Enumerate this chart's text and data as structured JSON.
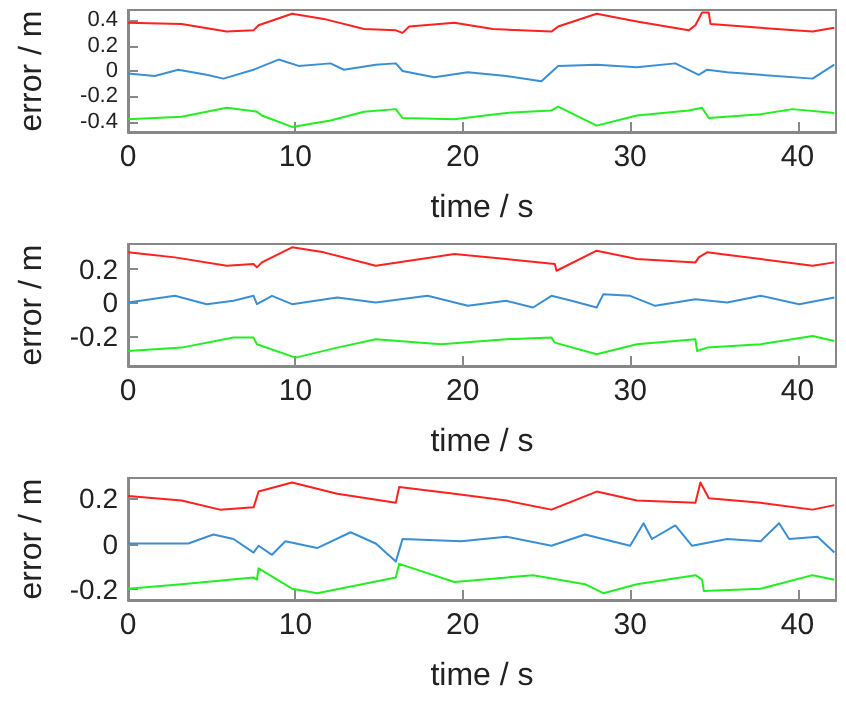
{
  "chart_data": [
    {
      "type": "line",
      "xlabel": "time / s",
      "ylabel": "error / m",
      "xlim": [
        0,
        42.3
      ],
      "xticks": [
        0,
        10,
        20,
        30,
        40
      ],
      "ylim": [
        -0.48,
        0.48
      ],
      "yticks": [
        -0.4,
        -0.2,
        0,
        0.2,
        0.4
      ],
      "grid": false,
      "marker": "none",
      "line_style": "solid",
      "series": [
        {
          "color": "#ff2020",
          "x": [
            0,
            3.2,
            5.9,
            7.5,
            7.8,
            9.8,
            11.7,
            14.1,
            16.0,
            16.4,
            16.8,
            19.5,
            21.8,
            25.3,
            25.7,
            28.0,
            30.4,
            33.5,
            33.9,
            34.3,
            34.7,
            34.8,
            37.8,
            40.9,
            42.2
          ],
          "values": [
            0.38,
            0.37,
            0.31,
            0.32,
            0.36,
            0.45,
            0.41,
            0.33,
            0.32,
            0.3,
            0.35,
            0.38,
            0.33,
            0.31,
            0.35,
            0.45,
            0.39,
            0.32,
            0.36,
            0.46,
            0.46,
            0.37,
            0.34,
            0.31,
            0.34
          ]
        },
        {
          "color": "#3a8fd4",
          "x": [
            0,
            1.6,
            3.0,
            4.7,
            5.7,
            7.5,
            9.0,
            10.2,
            12.1,
            12.9,
            14.8,
            16.0,
            16.4,
            18.3,
            20.3,
            22.6,
            24.7,
            25.7,
            28.0,
            30.4,
            32.7,
            34.1,
            34.6,
            35.8,
            37.8,
            40.9,
            42.2
          ],
          "values": [
            -0.02,
            -0.04,
            0.01,
            -0.03,
            -0.06,
            0.01,
            0.09,
            0.04,
            0.06,
            0.01,
            0.05,
            0.06,
            0,
            -0.05,
            -0.01,
            -0.04,
            -0.08,
            0.04,
            0.05,
            0.03,
            0.06,
            -0.03,
            0.01,
            -0.01,
            -0.03,
            -0.06,
            0.05
          ]
        },
        {
          "color": "#22ee22",
          "x": [
            0,
            3.2,
            5.9,
            7.7,
            8.0,
            9.8,
            12.1,
            14.1,
            16.0,
            16.4,
            19.5,
            22.6,
            25.3,
            25.7,
            28.0,
            30.4,
            33.5,
            34.3,
            34.7,
            37.8,
            39.7,
            42.2
          ],
          "values": [
            -0.38,
            -0.36,
            -0.29,
            -0.32,
            -0.35,
            -0.44,
            -0.39,
            -0.32,
            -0.3,
            -0.37,
            -0.38,
            -0.33,
            -0.31,
            -0.28,
            -0.43,
            -0.35,
            -0.31,
            -0.29,
            -0.37,
            -0.34,
            -0.3,
            -0.33
          ]
        }
      ]
    },
    {
      "type": "line",
      "xlabel": "time / s",
      "ylabel": "error / m",
      "xlim": [
        0,
        42.3
      ],
      "xticks": [
        0,
        10,
        20,
        30,
        40
      ],
      "ylim": [
        -0.38,
        0.35
      ],
      "yticks": [
        -0.2,
        0,
        0.2
      ],
      "grid": false,
      "marker": "none",
      "line_style": "solid",
      "series": [
        {
          "color": "#ff2020",
          "x": [
            0,
            2.8,
            5.9,
            7.5,
            7.7,
            8.0,
            9.8,
            11.7,
            14.8,
            19.5,
            22.6,
            25.5,
            25.6,
            28.0,
            30.4,
            33.9,
            34.1,
            34.6,
            37.8,
            40.9,
            42.2
          ],
          "values": [
            0.3,
            0.27,
            0.22,
            0.23,
            0.21,
            0.24,
            0.33,
            0.3,
            0.22,
            0.29,
            0.26,
            0.23,
            0.19,
            0.31,
            0.26,
            0.24,
            0.27,
            0.3,
            0.26,
            0.22,
            0.24
          ]
        },
        {
          "color": "#3a8fd4",
          "x": [
            0,
            2.8,
            4.7,
            6.3,
            7.5,
            7.7,
            8.6,
            9.8,
            12.5,
            14.8,
            17.9,
            20.3,
            22.6,
            24.2,
            25.3,
            26.5,
            28.0,
            28.4,
            30.0,
            31.5,
            33.9,
            35.8,
            37.8,
            40.1,
            42.2
          ],
          "values": [
            0,
            0.04,
            -0.01,
            0.01,
            0.04,
            -0.01,
            0.04,
            -0.01,
            0.03,
            0,
            0.04,
            -0.02,
            0.01,
            -0.03,
            0.04,
            0.01,
            -0.03,
            0.05,
            0.04,
            -0.02,
            0.02,
            0,
            0.04,
            -0.01,
            0.03
          ]
        },
        {
          "color": "#22ee22",
          "x": [
            0,
            3.2,
            6.3,
            7.5,
            7.7,
            10.0,
            12.5,
            14.8,
            18.7,
            22.6,
            25.3,
            25.5,
            28.0,
            30.4,
            33.9,
            34.0,
            34.6,
            37.8,
            40.9,
            42.2
          ],
          "values": [
            -0.29,
            -0.27,
            -0.21,
            -0.21,
            -0.25,
            -0.33,
            -0.27,
            -0.22,
            -0.25,
            -0.22,
            -0.21,
            -0.24,
            -0.31,
            -0.25,
            -0.22,
            -0.29,
            -0.27,
            -0.25,
            -0.2,
            -0.23
          ]
        }
      ]
    },
    {
      "type": "line",
      "xlabel": "time / s",
      "ylabel": "error / m",
      "xlim": [
        0,
        42.3
      ],
      "xticks": [
        0,
        10,
        20,
        30,
        40
      ],
      "ylim": [
        -0.25,
        0.29
      ],
      "yticks": [
        -0.2,
        0,
        0.2
      ],
      "grid": false,
      "marker": "none",
      "line_style": "solid",
      "series": [
        {
          "color": "#ff2020",
          "x": [
            0,
            3.2,
            5.5,
            7.5,
            7.8,
            9.8,
            12.5,
            16.0,
            16.2,
            19.5,
            22.6,
            25.3,
            28.0,
            30.4,
            33.9,
            34.2,
            34.7,
            37.8,
            40.9,
            42.2
          ],
          "values": [
            0.21,
            0.19,
            0.15,
            0.16,
            0.23,
            0.27,
            0.22,
            0.18,
            0.25,
            0.22,
            0.19,
            0.15,
            0.23,
            0.19,
            0.18,
            0.27,
            0.2,
            0.18,
            0.15,
            0.17
          ]
        },
        {
          "color": "#3a8fd4",
          "x": [
            0,
            3.6,
            5.1,
            6.3,
            7.5,
            7.8,
            8.6,
            9.4,
            11.3,
            13.3,
            14.8,
            16.0,
            16.4,
            19.9,
            22.6,
            25.3,
            27.3,
            30.0,
            30.8,
            31.3,
            32.7,
            33.7,
            35.8,
            37.8,
            38.9,
            39.5,
            41.2,
            42.2
          ],
          "values": [
            0,
            0,
            0.04,
            0.02,
            -0.04,
            -0.01,
            -0.05,
            0.01,
            -0.02,
            0.05,
            0,
            -0.08,
            0.02,
            0.01,
            0.03,
            -0.01,
            0.04,
            -0.01,
            0.09,
            0.02,
            0.08,
            -0.01,
            0.02,
            0.01,
            0.09,
            0.02,
            0.03,
            -0.04
          ]
        },
        {
          "color": "#22ee22",
          "x": [
            0,
            3.2,
            7.5,
            7.7,
            7.8,
            9.8,
            11.3,
            16.0,
            16.2,
            19.5,
            24.2,
            27.3,
            28.4,
            30.4,
            33.9,
            34.3,
            34.4,
            37.8,
            40.9,
            42.2
          ],
          "values": [
            -0.2,
            -0.18,
            -0.15,
            -0.16,
            -0.11,
            -0.2,
            -0.22,
            -0.15,
            -0.09,
            -0.17,
            -0.14,
            -0.18,
            -0.22,
            -0.18,
            -0.14,
            -0.16,
            -0.21,
            -0.2,
            -0.14,
            -0.16
          ]
        }
      ]
    }
  ]
}
